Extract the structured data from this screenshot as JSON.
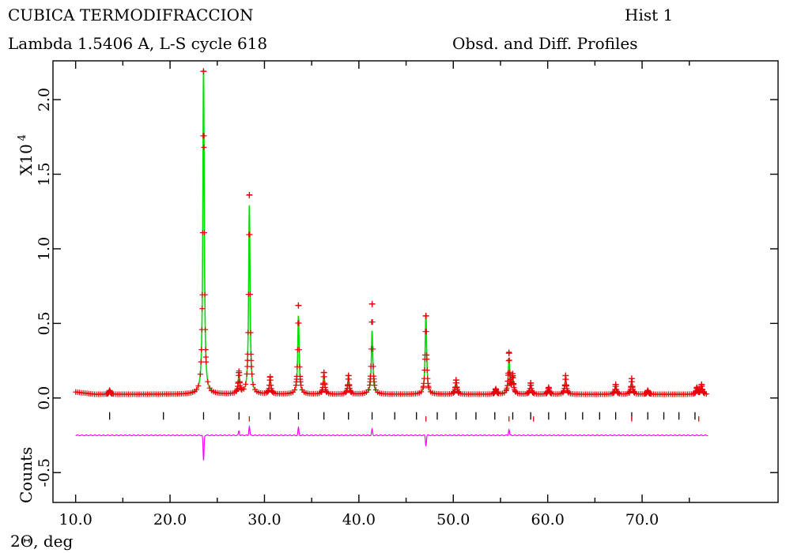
{
  "header": {
    "title": "CUBICA TERMODIFRACCION",
    "subtitle": "Lambda 1.5406 A, L-S cycle  618",
    "hist_label": "Hist  1",
    "profile_label": "Obsd. and Diff. Profiles"
  },
  "colors": {
    "observed": "#e8000b",
    "calculated": "#00e000",
    "difference": "#ff00ff",
    "reflection_ticks": "#000000",
    "axis": "#000000",
    "background": "#ffffff"
  },
  "chart_data": {
    "type": "line",
    "xlabel": "2Θ, deg",
    "ylabel": "Counts",
    "y_multiplier_label": "X10",
    "y_multiplier_exponent": "4",
    "xlim": [
      7.6,
      84.4
    ],
    "ylim": [
      -0.7,
      2.26
    ],
    "x_ticks": [
      10.0,
      20.0,
      30.0,
      40.0,
      50.0,
      60.0,
      70.0
    ],
    "x_tick_labels": [
      "10.0",
      "20.0",
      "30.0",
      "40.0",
      "50.0",
      "60.0",
      "70.0"
    ],
    "y_ticks": [
      -0.5,
      0.0,
      0.5,
      1.0,
      1.5,
      2.0
    ],
    "y_tick_labels": [
      "-0.5",
      "0.0",
      "0.5",
      "1.0",
      "1.5",
      "2.0"
    ],
    "grid": false,
    "x_range_data": [
      10.0,
      77.0
    ],
    "background_level": 0.025,
    "difference_offset": -0.25,
    "series": [
      {
        "name": "Observed",
        "marker": "plus",
        "peaks": [
          {
            "x": 13.6,
            "y": 0.05
          },
          {
            "x": 23.55,
            "y": 2.19
          },
          {
            "x": 27.3,
            "y": 0.17
          },
          {
            "x": 28.4,
            "y": 1.36
          },
          {
            "x": 30.6,
            "y": 0.14
          },
          {
            "x": 33.6,
            "y": 0.62
          },
          {
            "x": 36.3,
            "y": 0.17
          },
          {
            "x": 38.9,
            "y": 0.15
          },
          {
            "x": 41.4,
            "y": 0.63
          },
          {
            "x": 47.1,
            "y": 0.55
          },
          {
            "x": 50.3,
            "y": 0.12
          },
          {
            "x": 54.5,
            "y": 0.06
          },
          {
            "x": 55.9,
            "y": 0.3
          },
          {
            "x": 56.3,
            "y": 0.15
          },
          {
            "x": 58.2,
            "y": 0.1
          },
          {
            "x": 60.1,
            "y": 0.07
          },
          {
            "x": 61.9,
            "y": 0.15
          },
          {
            "x": 67.2,
            "y": 0.09
          },
          {
            "x": 68.9,
            "y": 0.13
          },
          {
            "x": 70.6,
            "y": 0.05
          },
          {
            "x": 75.8,
            "y": 0.07
          },
          {
            "x": 76.3,
            "y": 0.09
          }
        ]
      },
      {
        "name": "Calculated",
        "peaks": [
          {
            "x": 13.6,
            "y": 0.05
          },
          {
            "x": 23.55,
            "y": 2.2
          },
          {
            "x": 27.3,
            "y": 0.15
          },
          {
            "x": 28.4,
            "y": 1.29
          },
          {
            "x": 30.6,
            "y": 0.13
          },
          {
            "x": 33.6,
            "y": 0.55
          },
          {
            "x": 36.3,
            "y": 0.15
          },
          {
            "x": 38.9,
            "y": 0.14
          },
          {
            "x": 41.4,
            "y": 0.45
          },
          {
            "x": 47.1,
            "y": 0.57
          },
          {
            "x": 50.3,
            "y": 0.11
          },
          {
            "x": 54.5,
            "y": 0.06
          },
          {
            "x": 55.9,
            "y": 0.25
          },
          {
            "x": 56.3,
            "y": 0.14
          },
          {
            "x": 58.2,
            "y": 0.09
          },
          {
            "x": 60.1,
            "y": 0.07
          },
          {
            "x": 61.9,
            "y": 0.13
          },
          {
            "x": 67.2,
            "y": 0.08
          },
          {
            "x": 68.9,
            "y": 0.11
          },
          {
            "x": 70.6,
            "y": 0.05
          },
          {
            "x": 75.8,
            "y": 0.06
          },
          {
            "x": 76.3,
            "y": 0.08
          }
        ]
      },
      {
        "name": "Difference",
        "features": [
          {
            "x": 23.55,
            "dy": -0.17
          },
          {
            "x": 27.3,
            "dy": 0.03
          },
          {
            "x": 28.4,
            "dy": 0.06
          },
          {
            "x": 33.6,
            "dy": 0.05
          },
          {
            "x": 41.4,
            "dy": 0.04
          },
          {
            "x": 47.1,
            "dy": -0.07
          },
          {
            "x": 55.9,
            "dy": 0.04
          }
        ]
      }
    ],
    "reflections": [
      {
        "row": 1,
        "x": [
          13.6,
          19.3,
          23.55,
          27.3,
          30.6,
          33.6,
          36.3,
          38.9,
          41.4,
          43.8,
          46.1,
          48.3,
          50.3,
          52.4,
          54.4,
          56.3,
          58.2,
          60.1,
          61.9,
          63.7,
          65.5,
          67.2,
          68.9,
          70.6,
          72.3,
          73.9,
          75.6
        ]
      },
      {
        "row": 2,
        "x": [
          28.4,
          47.1,
          55.9,
          58.5,
          68.9,
          76.0
        ]
      }
    ]
  }
}
